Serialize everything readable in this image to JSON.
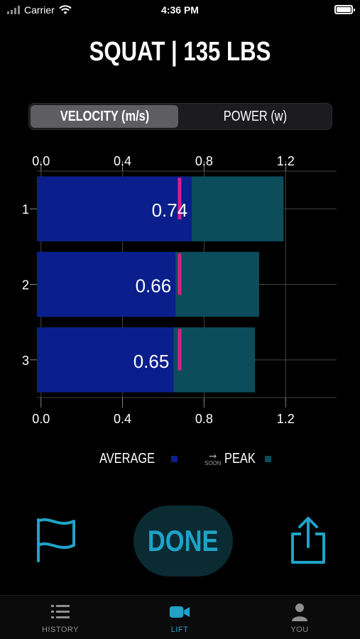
{
  "status_bar": {
    "carrier": "Carrier",
    "time": "4:36 PM"
  },
  "header": {
    "title": "SQUAT | 135 LBS"
  },
  "segmented": {
    "options": [
      "VELOCITY (m/s)",
      "POWER (w)"
    ],
    "selected": "VELOCITY (m/s)"
  },
  "chart_data": {
    "type": "bar",
    "orientation": "horizontal",
    "categories": [
      "1",
      "2",
      "3"
    ],
    "series": [
      {
        "name": "AVERAGE",
        "values": [
          0.74,
          0.66,
          0.65
        ],
        "color": "#0a1f8c"
      },
      {
        "name": "PEAK",
        "values": [
          1.19,
          1.07,
          1.05
        ],
        "color": "#0c4d5c"
      }
    ],
    "markers": [
      0.68,
      0.68,
      0.68
    ],
    "marker_color": "#d91f87",
    "data_labels": [
      "0.74",
      "0.66",
      "0.65"
    ],
    "xlim": [
      -0.02,
      1.45
    ],
    "x_ticks": [
      0.0,
      0.4,
      0.8,
      1.2
    ],
    "x_tick_labels": [
      "0.0",
      "0.4",
      "0.8",
      "1.2"
    ],
    "grid": true,
    "legend_position": "bottom"
  },
  "legend": {
    "average_label": "AVERAGE",
    "peak_label": "PEAK",
    "soon_label": "SOON",
    "average_color": "#0a1f8c",
    "peak_color": "#0c4d5c"
  },
  "actions": {
    "done_label": "DONE",
    "flag_icon": "flag-icon",
    "share_icon": "share-icon",
    "accent": "#1fa3c8"
  },
  "tabbar": {
    "tabs": [
      {
        "label": "HISTORY",
        "icon": "list-icon"
      },
      {
        "label": "LIFT",
        "icon": "video-camera-icon",
        "active": true
      },
      {
        "label": "YOU",
        "icon": "person-icon"
      }
    ]
  }
}
